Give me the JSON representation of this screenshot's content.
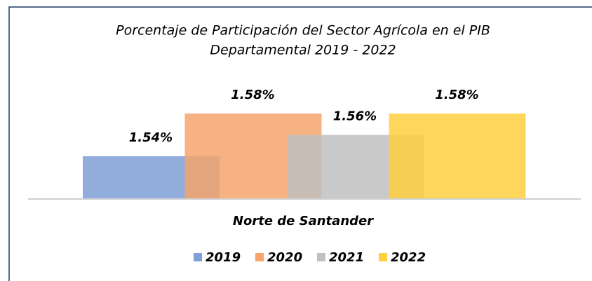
{
  "chart_data": {
    "type": "bar",
    "title": [
      "Porcentaje de Participación del Sector Agrícola en el PIB",
      "Departamental 2019 - 2022"
    ],
    "categories": [
      "Norte de Santander"
    ],
    "series": [
      {
        "name": "2019",
        "color": "#7f9fd6",
        "values": [
          1.54
        ],
        "value_labels": [
          "1.54%"
        ]
      },
      {
        "name": "2020",
        "color": "#f4a46c",
        "values": [
          1.58
        ],
        "value_labels": [
          "1.58%"
        ]
      },
      {
        "name": "2021",
        "color": "#c0c0c0",
        "values": [
          1.56
        ],
        "value_labels": [
          "1.56%"
        ]
      },
      {
        "name": "2022",
        "color": "#ffcf40",
        "values": [
          1.58
        ],
        "value_labels": [
          "1.58%"
        ]
      }
    ],
    "ylim": [
      1.5,
      1.62
    ],
    "legend": "bottom"
  }
}
